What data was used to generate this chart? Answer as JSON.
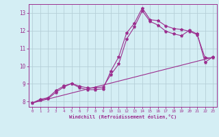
{
  "xlabel": "Windchill (Refroidissement éolien,°C)",
  "xlim": [
    -0.5,
    23.5
  ],
  "ylim": [
    7.7,
    13.5
  ],
  "xticks": [
    0,
    1,
    2,
    3,
    4,
    5,
    6,
    7,
    8,
    9,
    10,
    11,
    12,
    13,
    14,
    15,
    16,
    17,
    18,
    19,
    20,
    21,
    22,
    23
  ],
  "yticks": [
    8,
    9,
    10,
    11,
    12,
    13
  ],
  "bg_color": "#d4eef4",
  "line_color": "#9b2d8e",
  "grid_color": "#b5cfd8",
  "curve1_x": [
    0,
    1,
    2,
    3,
    4,
    5,
    6,
    7,
    8,
    9,
    10,
    11,
    12,
    13,
    14,
    15,
    16,
    17,
    18,
    19,
    20,
    21,
    22,
    23
  ],
  "curve1_y": [
    7.92,
    8.13,
    8.22,
    8.62,
    8.88,
    9.02,
    8.78,
    8.67,
    8.67,
    8.72,
    9.72,
    10.52,
    11.87,
    12.42,
    13.28,
    12.62,
    12.57,
    12.27,
    12.12,
    12.07,
    11.97,
    11.77,
    10.47,
    10.47
  ],
  "curve2_x": [
    0,
    1,
    2,
    3,
    4,
    5,
    6,
    7,
    8,
    9,
    10,
    11,
    12,
    13,
    14,
    15,
    16,
    17,
    18,
    19,
    20,
    21,
    22,
    23
  ],
  "curve2_y": [
    7.92,
    8.07,
    8.17,
    8.52,
    8.82,
    9.02,
    8.87,
    8.77,
    8.77,
    8.82,
    9.52,
    10.12,
    11.52,
    12.22,
    13.12,
    12.52,
    12.32,
    11.97,
    11.82,
    11.72,
    12.02,
    11.82,
    10.22,
    10.52
  ],
  "curve3_x": [
    0,
    23
  ],
  "curve3_y": [
    7.92,
    10.5
  ]
}
